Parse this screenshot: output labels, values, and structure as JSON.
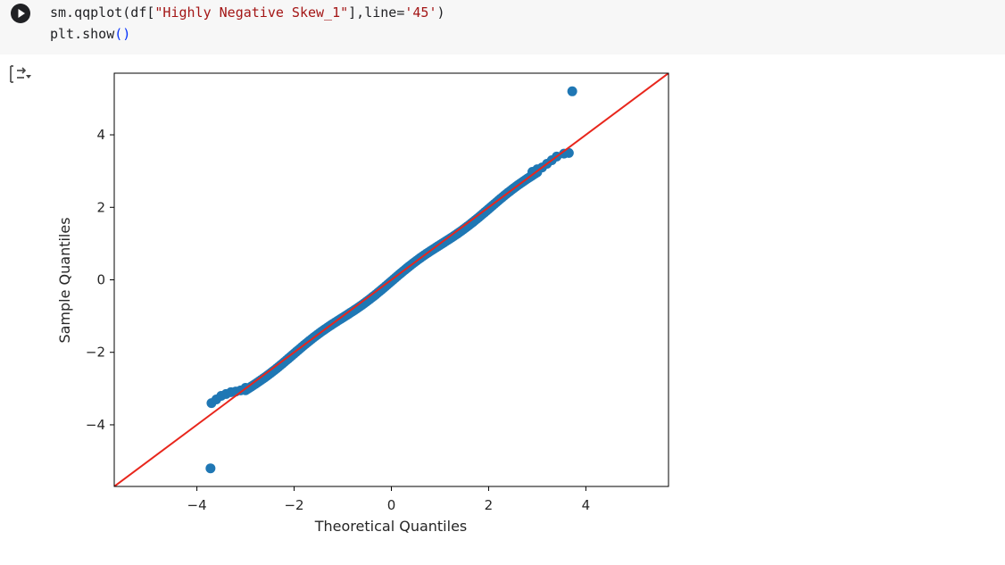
{
  "cell": {
    "code_lines": [
      {
        "fn": "sm.qqplot(df[",
        "arg": "\"Highly Negative Skew_1\"",
        "tail": "],line=",
        "opt": "'45'",
        "close": ")"
      },
      {
        "fn": "plt.show",
        "paren": "()"
      }
    ],
    "run_icon": "play-circle-icon",
    "output_icon": "collapse-output-icon"
  },
  "chart_data": {
    "type": "scatter",
    "title": "",
    "xlabel": "Theoretical Quantiles",
    "ylabel": "Sample Quantiles",
    "xlim": [
      -5.7,
      5.7
    ],
    "ylim": [
      -5.7,
      5.7
    ],
    "xticks": [
      -4,
      -2,
      0,
      2,
      4
    ],
    "yticks": [
      -4,
      -2,
      0,
      2,
      4
    ],
    "xtick_labels": [
      "−4",
      "−2",
      "0",
      "2",
      "4"
    ],
    "ytick_labels": [
      "−4",
      "−2",
      "0",
      "2",
      "4"
    ],
    "grid": false,
    "reference_line": {
      "type": "45-degree",
      "color": "#e8261c"
    },
    "marker_color": "#1f77b4",
    "points": {
      "outliers": [
        [
          -3.72,
          -5.2
        ],
        [
          3.72,
          5.2
        ]
      ],
      "tail_low": [
        [
          -3.7,
          -3.4
        ],
        [
          -3.6,
          -3.3
        ],
        [
          -3.5,
          -3.2
        ],
        [
          -3.4,
          -3.15
        ],
        [
          -3.3,
          -3.1
        ],
        [
          -3.2,
          -3.08
        ],
        [
          -3.1,
          -3.05
        ],
        [
          -3.0,
          -2.98
        ]
      ],
      "tail_high": [
        [
          2.9,
          2.98
        ],
        [
          3.0,
          3.05
        ],
        [
          3.1,
          3.1
        ],
        [
          3.2,
          3.2
        ],
        [
          3.3,
          3.3
        ],
        [
          3.4,
          3.4
        ],
        [
          3.55,
          3.48
        ],
        [
          3.65,
          3.5
        ]
      ],
      "body_range": [
        -3.0,
        3.0
      ],
      "body_step": 0.04
    }
  }
}
